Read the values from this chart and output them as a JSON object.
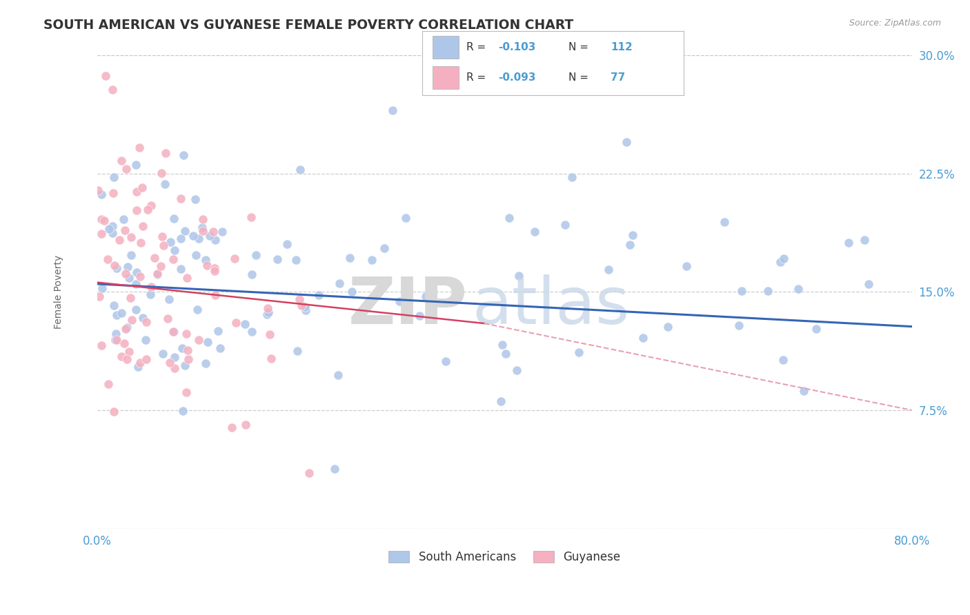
{
  "title": "SOUTH AMERICAN VS GUYANESE FEMALE POVERTY CORRELATION CHART",
  "source_text": "Source: ZipAtlas.com",
  "ylabel": "Female Poverty",
  "xlim": [
    0.0,
    0.8
  ],
  "ylim": [
    0.0,
    0.3
  ],
  "background_color": "#ffffff",
  "grid_color": "#c8c8c8",
  "title_color": "#333333",
  "axis_label_color": "#666666",
  "tick_label_color": "#4b9cd3",
  "watermark_zip": "ZIP",
  "watermark_atlas": "atlas",
  "legend": {
    "sa_color": "#aec6e8",
    "gy_color": "#f4b0c0",
    "sa_label": "South Americans",
    "gy_label": "Guyanese",
    "sa_R": "-0.103",
    "sa_N": "112",
    "gy_R": "-0.093",
    "gy_N": "77",
    "text_color": "#4b9cd3",
    "label_color": "#333333"
  },
  "sa_line_color": "#3465b5",
  "gy_line_solid_color": "#d44060",
  "gy_line_dashed_color": "#e8a0b0"
}
